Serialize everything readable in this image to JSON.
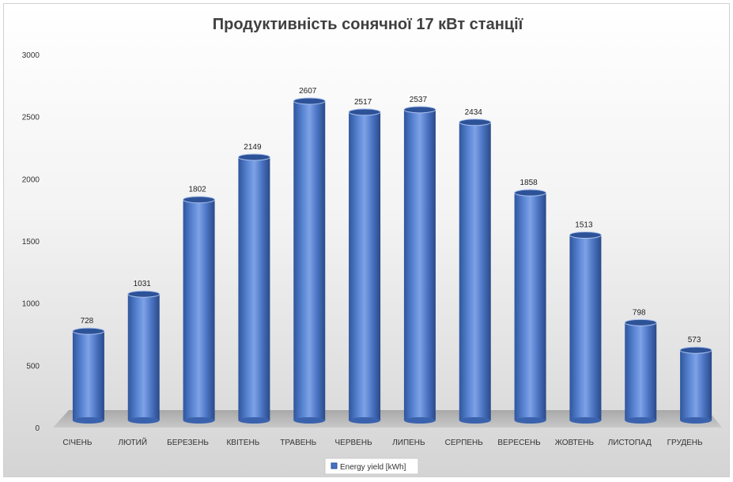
{
  "chart_data": {
    "type": "bar",
    "style": "3d-cylinder",
    "title": "Продуктивність сонячної 17 кВт станції",
    "categories": [
      "СІЧЕНЬ",
      "ЛЮТИЙ",
      "БЕРЕЗЕНЬ",
      "КВІТЕНЬ",
      "ТРАВЕНЬ",
      "ЧЕРВЕНЬ",
      "ЛИПЕНЬ",
      "СЕРПЕНЬ",
      "ВЕРЕСЕНЬ",
      "ЖОВТЕНЬ",
      "ЛИСТОПАД",
      "ГРУДЕНЬ"
    ],
    "series": [
      {
        "name": "Energy yield [kWh]",
        "values": [
          728,
          1031,
          1802,
          2149,
          2607,
          2517,
          2537,
          2434,
          1858,
          1513,
          798,
          573
        ]
      }
    ],
    "xlabel": "",
    "ylabel": "",
    "ylim": [
      0,
      3000
    ],
    "yticks": [
      0,
      500,
      1000,
      1500,
      2000,
      2500,
      3000
    ],
    "grid": false,
    "legend_position": "bottom",
    "colors": {
      "bar": "#4472c4",
      "bar_dark": "#2a4e94",
      "bar_light": "#86a9e8",
      "floor": "#bdbdbd"
    }
  }
}
